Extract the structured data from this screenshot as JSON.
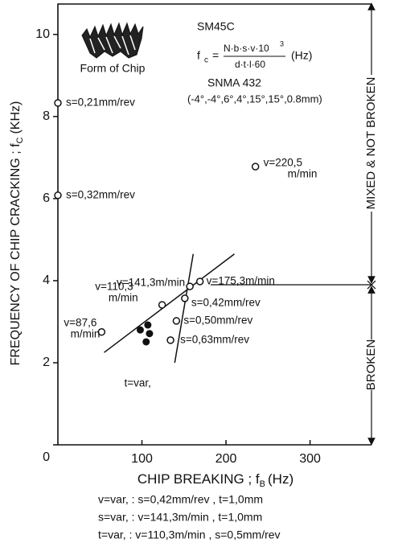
{
  "chart_data": {
    "type": "scatter",
    "xlabel": {
      "text": "CHIP BREAKING ; f",
      "sub": "B",
      "unit": "(Hz)"
    },
    "ylabel": {
      "text": "FREQUENCY OF CHIP CRACKING ; f",
      "sub": "C",
      "unit": "(KHz)"
    },
    "xlim": [
      0,
      375
    ],
    "ylim": [
      0,
      10.8
    ],
    "xticks": [
      100,
      200,
      300
    ],
    "yticks": [
      0,
      2,
      4,
      6,
      8,
      10
    ],
    "points": [
      {
        "x": 0,
        "y": 8.33,
        "label": [
          "s=0,21mm/rev"
        ]
      },
      {
        "x": 0,
        "y": 6.08,
        "label": [
          "s=0,32mm/rev"
        ]
      },
      {
        "x": 235,
        "y": 6.78,
        "label": [
          "v=220,5",
          "m/min"
        ]
      },
      {
        "x": 157,
        "y": 3.86,
        "label": [
          "v=141,3m/min"
        ]
      },
      {
        "x": 169,
        "y": 3.98,
        "label": [
          "v=175,3m/min"
        ]
      },
      {
        "x": 151,
        "y": 3.57,
        "label": [
          "s=0,42mm/rev"
        ]
      },
      {
        "x": 124,
        "y": 3.41,
        "label": [
          "v=110,3",
          "m/min"
        ]
      },
      {
        "x": 52,
        "y": 2.75,
        "label": [
          "v=87,6",
          "m/min"
        ]
      },
      {
        "x": 141,
        "y": 3.02,
        "label": [
          "s=0,50mm/rev"
        ]
      },
      {
        "x": 134,
        "y": 2.55,
        "label": [
          "s=0,63mm/rev"
        ]
      }
    ],
    "filled_points": {
      "label": "t=var,",
      "x": [
        98,
        107,
        109,
        105
      ],
      "y": [
        2.8,
        2.92,
        2.71,
        2.51
      ]
    },
    "lines": [
      {
        "x": [
          139,
          161
        ],
        "y": [
          2.0,
          4.65
        ]
      },
      {
        "x": [
          55,
          210
        ],
        "y": [
          2.25,
          4.65
        ]
      }
    ],
    "threshold": 3.9,
    "regions": {
      "upper": "MIXED & NOT BROKEN",
      "lower": "BROKEN"
    },
    "chip_caption": "Form of Chip",
    "material": "SM45C",
    "formula": {
      "lhs": "f",
      "lhs_sub": "c",
      "eq": "=",
      "numerator": "N·b·s·v·10",
      "numerator_sup": "3",
      "denominator": "d·t·l·60",
      "unit": "(Hz)"
    },
    "insert": "SNMA 432",
    "geometry": "(-4°,-4°,6°,4°,15°,15°,0.8mm)",
    "notes": [
      "v=var, :  s=0,42mm/rev , t=1,0mm",
      "s=var, :  v=141,3m/min ,  t=1,0mm",
      "t=var, :  v=110,3m/min , s=0,5mm/rev"
    ]
  }
}
